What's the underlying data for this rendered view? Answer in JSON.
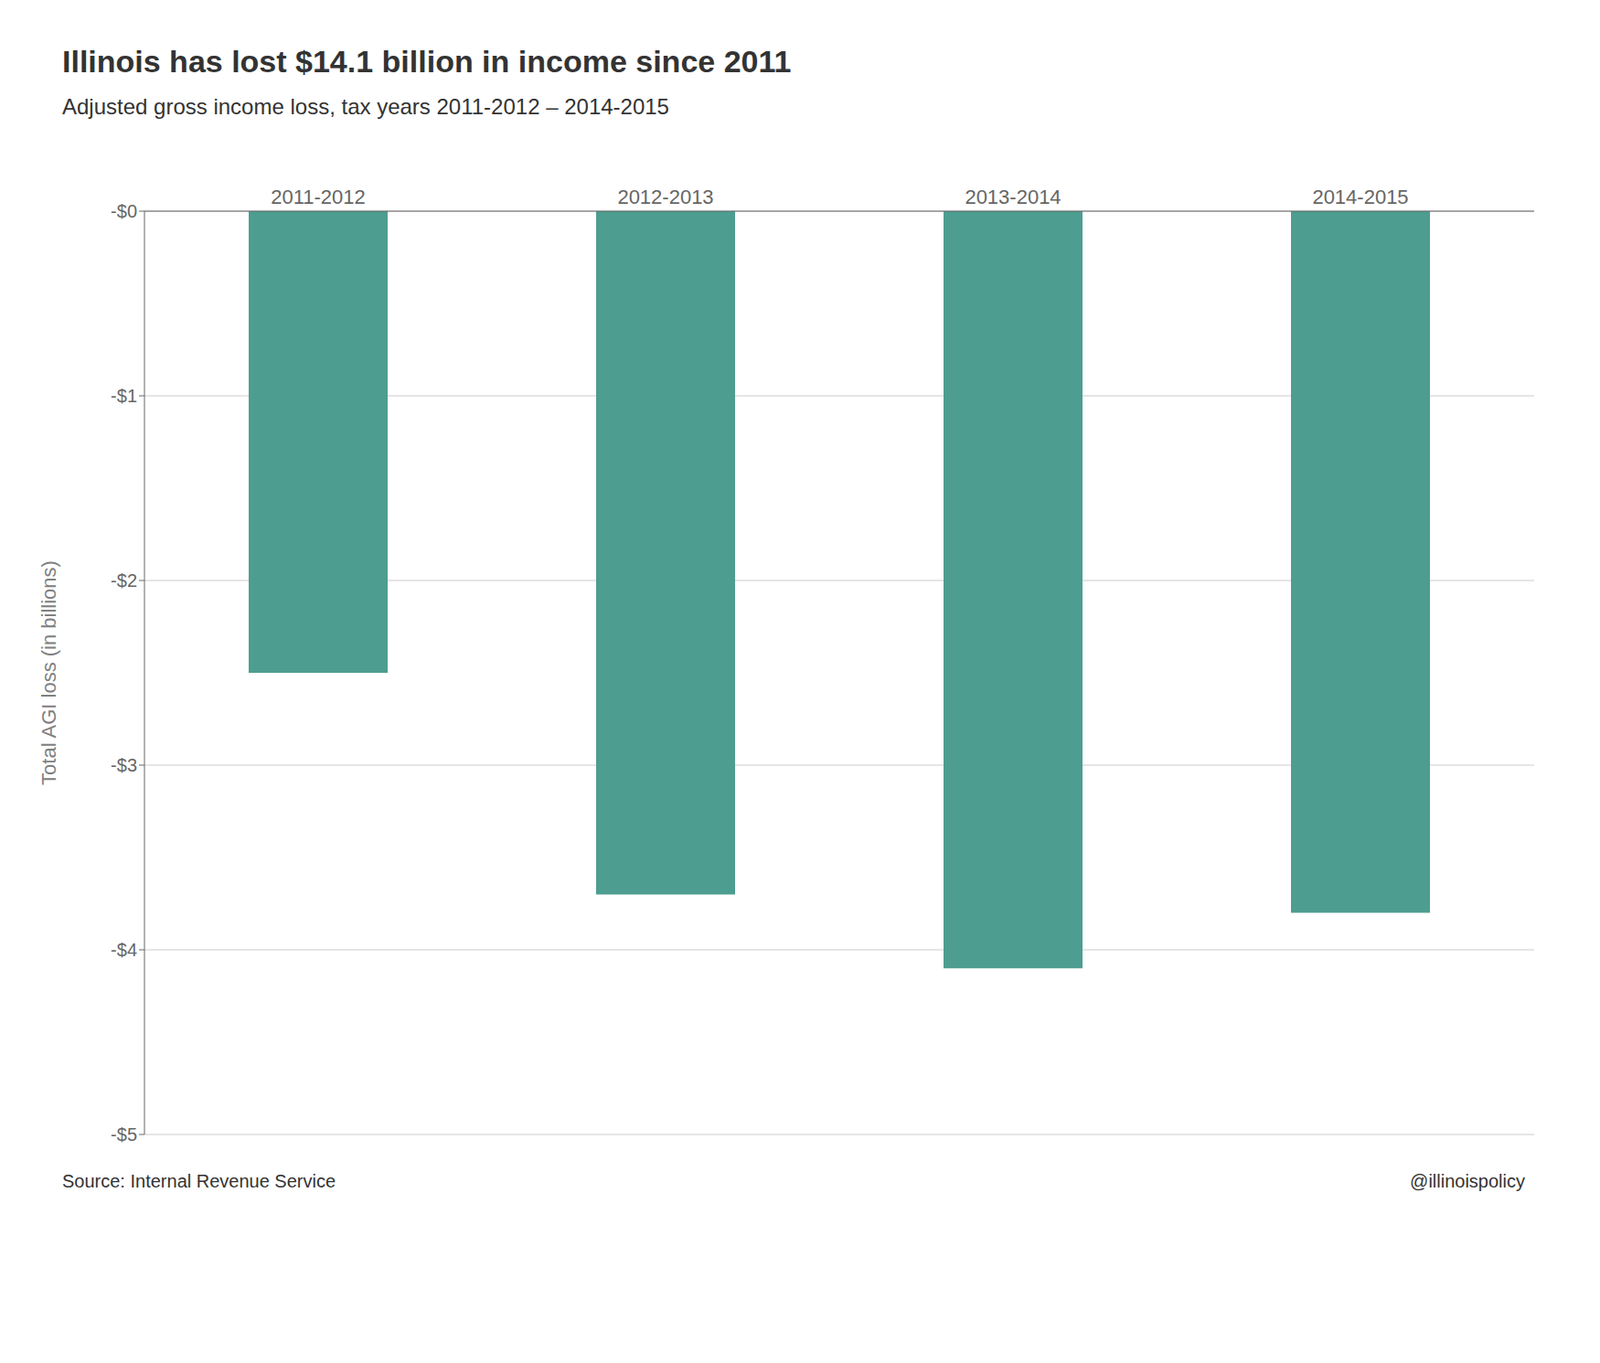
{
  "chart_data": {
    "type": "bar",
    "title": "Illinois has lost $14.1 billion in income since 2011",
    "subtitle": "Adjusted gross income loss, tax years 2011-2012 – 2014-2015",
    "categories": [
      "2011-2012",
      "2012-2013",
      "2013-2014",
      "2014-2015"
    ],
    "values": [
      -2.5,
      -3.7,
      -4.1,
      -3.8
    ],
    "color": "#4d9d91",
    "ylabel": "Total AGI loss (in billions)",
    "ylim": [
      -5,
      0
    ],
    "yticks": [
      {
        "value": 0,
        "label": "-$0"
      },
      {
        "value": -1,
        "label": "-$1"
      },
      {
        "value": -2,
        "label": "-$2"
      },
      {
        "value": -3,
        "label": "-$3"
      },
      {
        "value": -4,
        "label": "-$4"
      },
      {
        "value": -5,
        "label": "-$5"
      }
    ],
    "grid": true,
    "annotations": [
      "Source: Internal Revenue Service",
      "@illinoispolicy"
    ]
  }
}
